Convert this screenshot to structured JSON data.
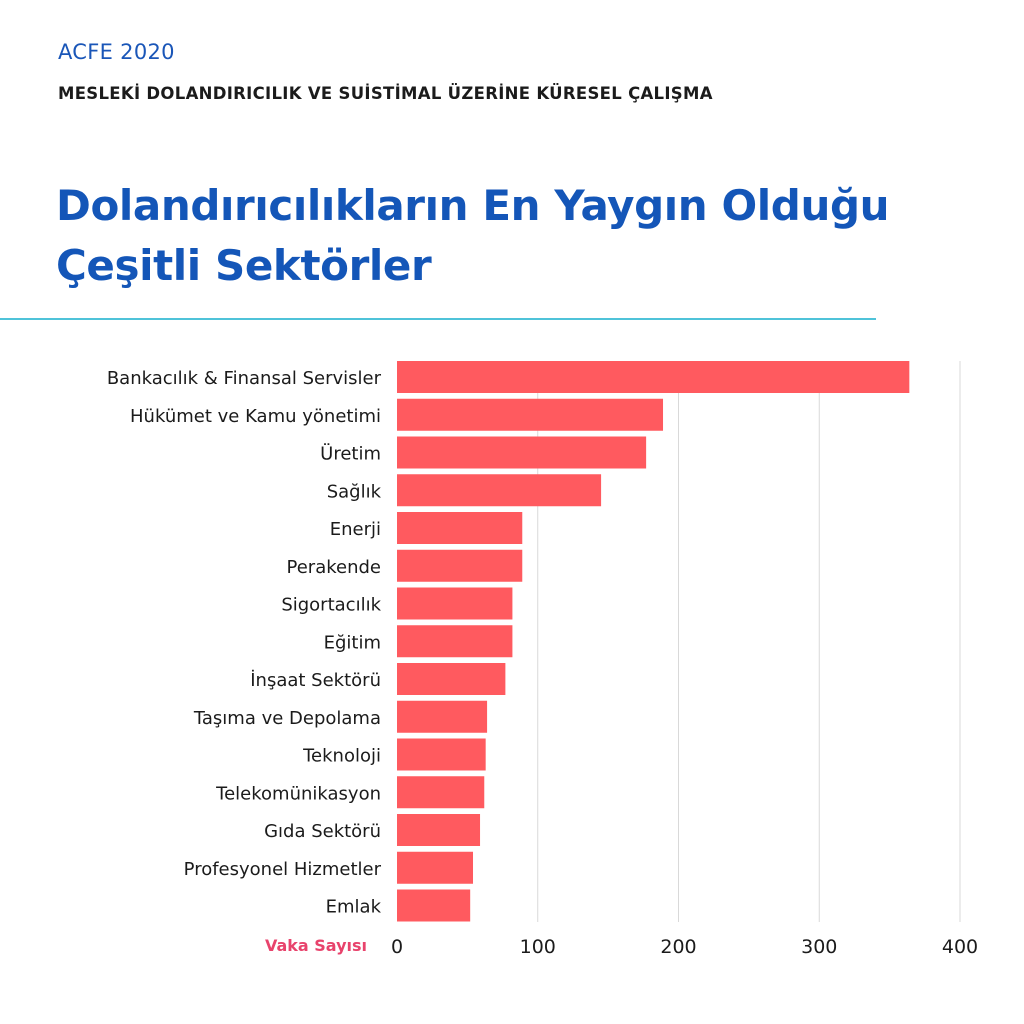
{
  "header": {
    "source": "ACFE 2020",
    "subtitle": "MESLEKİ DOLANDIRICILIK VE SUİSTİMAL ÜZERİNE KÜRESEL ÇALIŞMA",
    "title": "Dolandırıcılıkların En Yaygın Olduğu Çeşitli Sektörler"
  },
  "colors": {
    "bar": "#ff5a5f",
    "title": "#1456b8",
    "divider": "#4fc3d9",
    "xlabel": "#e8436c",
    "grid": "#d9d9d9"
  },
  "chart_data": {
    "type": "bar",
    "orientation": "horizontal",
    "categories": [
      "Bankacılık & Finansal Servisler",
      "Hükümet ve Kamu yönetimi",
      "Üretim",
      "Sağlık",
      "Enerji",
      "Perakende",
      "Sigortacılık",
      "Eğitim",
      "İnşaat Sektörü",
      "Taşıma ve Depolama",
      "Teknoloji",
      "Telekomünikasyon",
      "Gıda Sektörü",
      "Profesyonel Hizmetler",
      "Emlak"
    ],
    "values": [
      364,
      189,
      177,
      145,
      89,
      89,
      82,
      82,
      77,
      64,
      63,
      62,
      59,
      54,
      52
    ],
    "xlabel": "Vaka Sayısı",
    "xlim": [
      0,
      400
    ],
    "xticks": [
      0,
      100,
      200,
      300,
      400
    ],
    "grid": true,
    "legend": "none"
  }
}
